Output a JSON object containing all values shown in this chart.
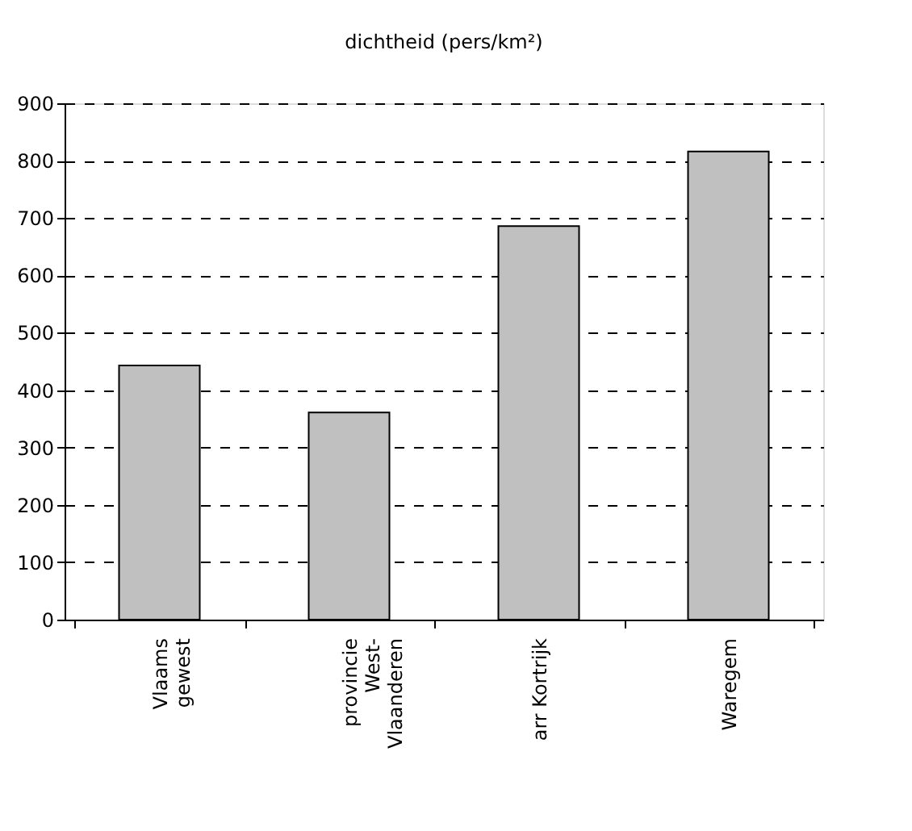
{
  "chart_data": {
    "type": "bar",
    "title": "dichtheid (pers/km²)",
    "categories": [
      "Vlaams\ngewest",
      "provincie\nWest-\nVlaanderen",
      "arr Kortrijk",
      "Waregem"
    ],
    "values": [
      443,
      361,
      686,
      816
    ],
    "color": "#c0c0c0",
    "ylim": [
      0,
      900
    ],
    "yticks": [
      0,
      100,
      200,
      300,
      400,
      500,
      600,
      700,
      800,
      900
    ],
    "grid": "y",
    "line_style": "dashed"
  }
}
